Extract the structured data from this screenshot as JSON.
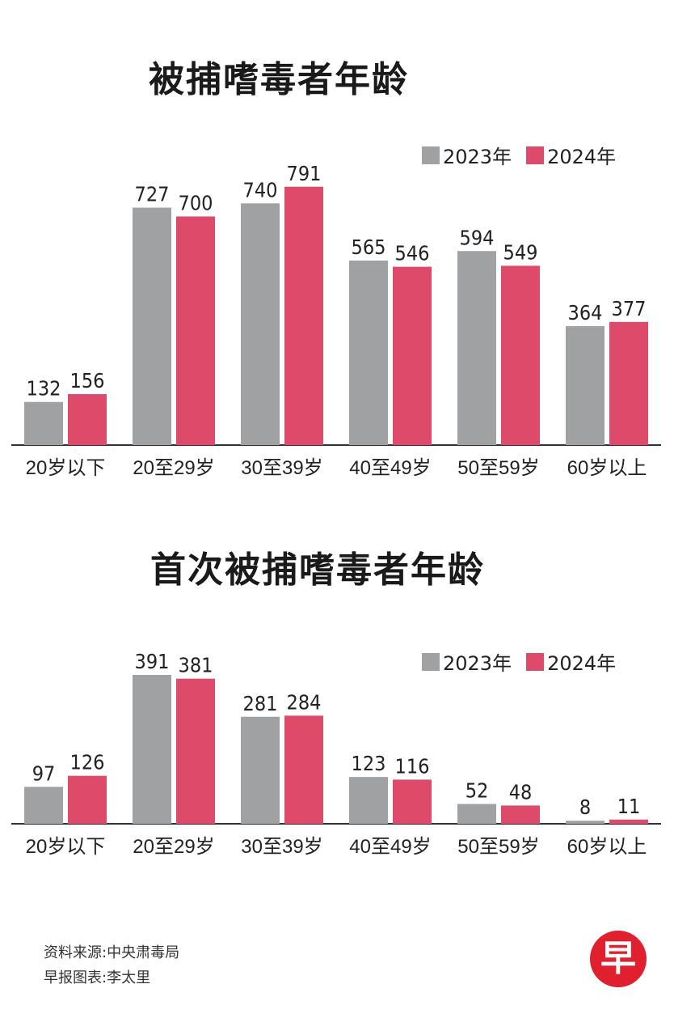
{
  "colors": {
    "y2023": "#a0a1a3",
    "y2024": "#de4a6a",
    "axis": "#333333",
    "text": "#222222"
  },
  "charts": [
    {
      "title": "被捕嗜毒者年龄",
      "legend": [
        "2023年",
        "2024年"
      ],
      "chart_data": {
        "type": "bar",
        "categories": [
          "20岁以下",
          "20至29岁",
          "30至39岁",
          "40至49岁",
          "50至59岁",
          "60岁以上"
        ],
        "series": [
          {
            "name": "2023年",
            "values": [
              132,
              727,
              740,
              565,
              594,
              364
            ]
          },
          {
            "name": "2024年",
            "values": [
              156,
              700,
              791,
              546,
              549,
              377
            ]
          }
        ],
        "ylim": [
          0,
          800
        ]
      }
    },
    {
      "title": "首次被捕嗜毒者年龄",
      "legend": [
        "2023年",
        "2024年"
      ],
      "chart_data": {
        "type": "bar",
        "categories": [
          "20岁以下",
          "20至29岁",
          "30至39岁",
          "40至49岁",
          "50至59岁",
          "60岁以上"
        ],
        "series": [
          {
            "name": "2023年",
            "values": [
              97,
              391,
              281,
              123,
              52,
              8
            ]
          },
          {
            "name": "2024年",
            "values": [
              126,
              381,
              284,
              116,
              48,
              11
            ]
          }
        ],
        "ylim": [
          0,
          400
        ]
      }
    }
  ],
  "footer": {
    "source": "资料来源:中央肃毒局",
    "credit": "早报图表:李太里"
  },
  "logo": {
    "glyph": "早"
  }
}
